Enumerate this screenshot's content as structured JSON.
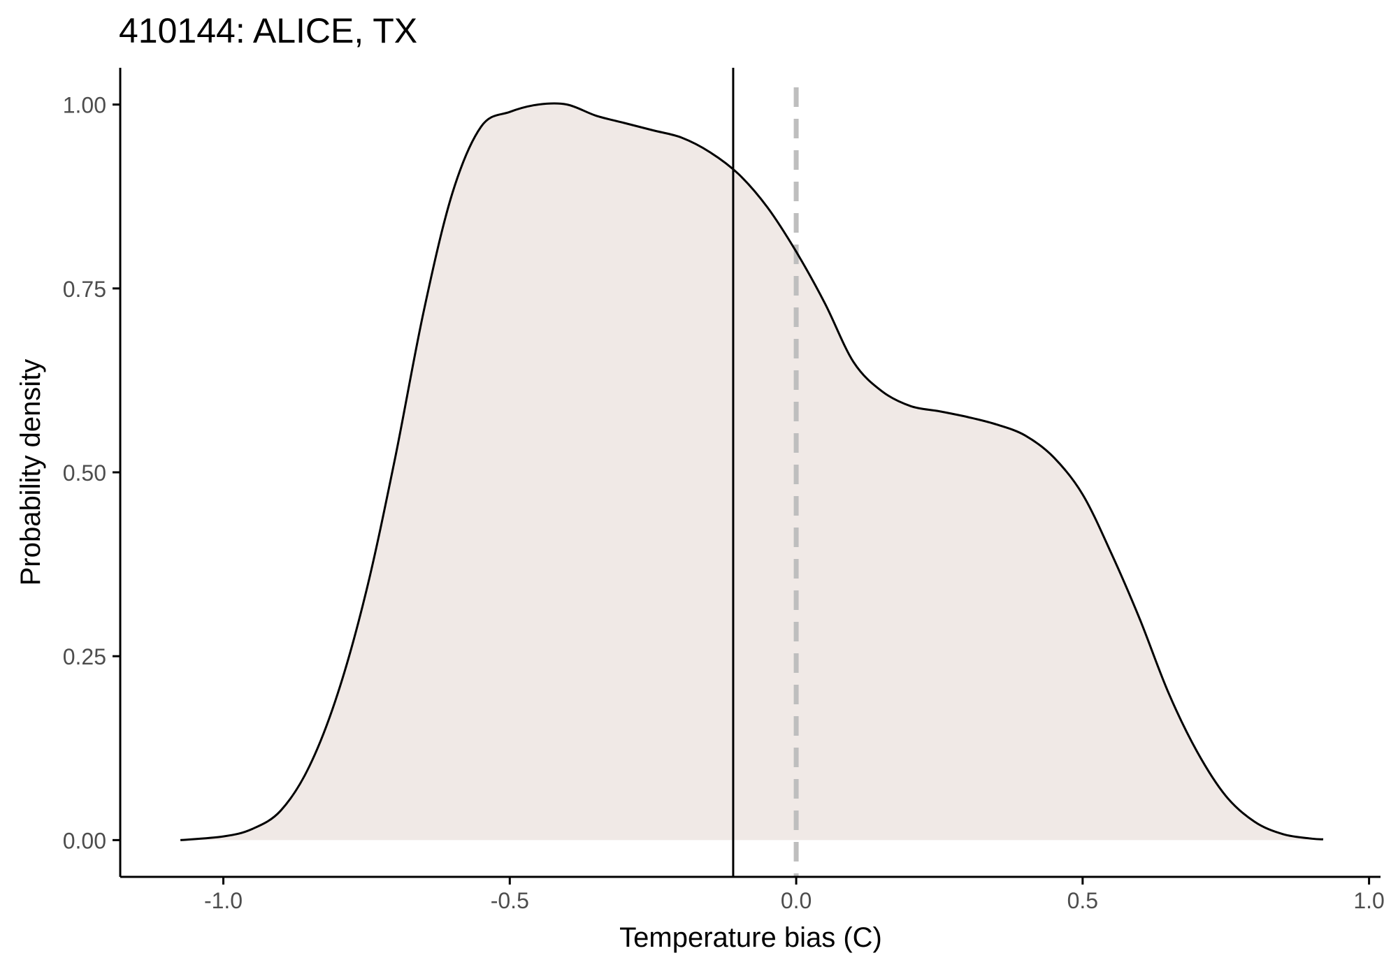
{
  "chart_data": {
    "type": "area",
    "title": "410144: ALICE, TX",
    "xlabel": "Temperature bias (C)",
    "ylabel": "Probability density",
    "xlim": [
      -1.18,
      1.02
    ],
    "ylim": [
      -0.05,
      1.05
    ],
    "x_ticks": [
      -1.0,
      -0.5,
      0.0,
      0.5,
      1.0
    ],
    "x_tick_labels": [
      "-1.0",
      "-0.5",
      "0.0",
      "0.5",
      "1.0"
    ],
    "y_ticks": [
      0.0,
      0.25,
      0.5,
      0.75,
      1.0
    ],
    "y_tick_labels": [
      "0.00",
      "0.25",
      "0.50",
      "0.75",
      "1.00"
    ],
    "grid": false,
    "legend": "none",
    "series": [
      {
        "x": [
          -1.075,
          -1.0,
          -0.95,
          -0.9,
          -0.85,
          -0.8,
          -0.75,
          -0.7,
          -0.65,
          -0.6,
          -0.55,
          -0.5,
          -0.45,
          -0.4,
          -0.35,
          -0.3,
          -0.25,
          -0.2,
          -0.15,
          -0.1,
          -0.05,
          0.0,
          0.05,
          0.1,
          0.15,
          0.2,
          0.25,
          0.3,
          0.35,
          0.4,
          0.45,
          0.5,
          0.55,
          0.6,
          0.65,
          0.7,
          0.75,
          0.8,
          0.85,
          0.9,
          0.92
        ],
        "y": [
          0.0,
          0.005,
          0.015,
          0.04,
          0.1,
          0.2,
          0.34,
          0.52,
          0.72,
          0.88,
          0.97,
          0.99,
          1.0,
          1.0,
          0.985,
          0.975,
          0.965,
          0.955,
          0.935,
          0.905,
          0.86,
          0.8,
          0.73,
          0.65,
          0.61,
          0.59,
          0.583,
          0.575,
          0.565,
          0.55,
          0.52,
          0.47,
          0.39,
          0.3,
          0.2,
          0.12,
          0.06,
          0.025,
          0.008,
          0.002,
          0.001
        ]
      }
    ],
    "reference_lines": [
      {
        "x": -0.11,
        "style": "solid",
        "color": "#000000"
      },
      {
        "x": 0.0,
        "style": "dashed",
        "color": "#bebebe"
      }
    ],
    "fill_color": "#f0e9e6",
    "line_color": "#000000"
  }
}
